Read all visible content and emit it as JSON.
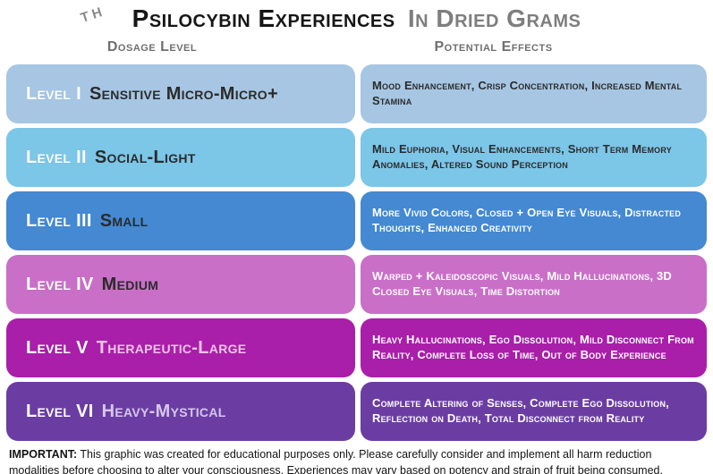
{
  "title": {
    "th_mark": "TH",
    "black_part": "Psilocybin Experiences",
    "gray_part": "In Dried Grams"
  },
  "columns": {
    "left": "Dosage Level",
    "right": "Potential Effects"
  },
  "rows": [
    {
      "level": "Level I",
      "name": "Sensitive Micro-Micro+",
      "effects": "Mood Enhancement, Crisp Concentration, Increased Mental Stamina",
      "bg_color": "#a6c6e3",
      "name_color": "#2b2b2b",
      "effects_color": "#2b2b2b"
    },
    {
      "level": "Level II",
      "name": "Social-Light",
      "effects": "Mild Euphoria, Visual Enhancements, Short Term Memory Anomalies, Altered Sound Perception",
      "bg_color": "#7cc6e8",
      "name_color": "#2b2b2b",
      "effects_color": "#2b2b2b"
    },
    {
      "level": "Level III",
      "name": "Small",
      "effects": "More Vivid Colors, Closed + Open Eye Visuals, Distracted Thoughts, Enhanced Creativity",
      "bg_color": "#4489d2",
      "name_color": "#2b2b2b",
      "effects_color": "#ffffff"
    },
    {
      "level": "Level IV",
      "name": "Medium",
      "effects": "Warped + Kaleidoscopic Visuals, Mild Hallucinations, 3D Closed Eye Visuals, Time Distortion",
      "bg_color": "#c96fc7",
      "name_color": "#2b2b2b",
      "effects_color": "#ffffff"
    },
    {
      "level": "Level V",
      "name": "Therapeutic-Large",
      "effects": "Heavy Hallucinations, Ego Dissolution, Mild Disconnect From Reality, Complete Loss of Time, Out of Body Experience",
      "bg_color": "#a91fa9",
      "name_color": "#f0c3e6",
      "effects_color": "#ffffff"
    },
    {
      "level": "Level VI",
      "name": "Heavy-Mystical",
      "effects": "Complete Altering of Senses, Complete Ego Dissolution, Reflection on Death, Total Disconnect from Reality",
      "bg_color": "#6b3da3",
      "name_color": "#d4c8ec",
      "effects_color": "#ffffff"
    }
  ],
  "footer": {
    "label": "IMPORTANT:",
    "text": "This graphic was created for educational purposes only.  Please carefully consider and implement all harm reduction modalities before choosing to alter your consciousness.  Experiences may vary based on potency and strain of fruit being consumed."
  },
  "colors": {
    "title_black": "#161616",
    "title_gray": "#7e7e7e",
    "header_gray": "#6f6f6f",
    "level_white": "#ffffff"
  }
}
